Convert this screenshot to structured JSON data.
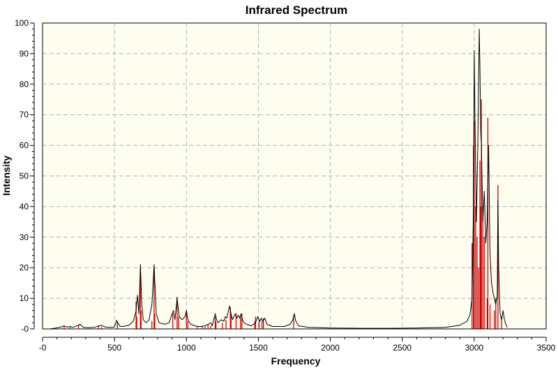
{
  "chart_data": {
    "type": "line",
    "title": "Infrared Spectrum",
    "xlabel": "Frequency",
    "ylabel": "Intensity",
    "xlim": [
      0,
      3500
    ],
    "ylim": [
      0,
      100
    ],
    "x_ticks": [
      0,
      500,
      1000,
      1500,
      2000,
      2500,
      3000,
      3500
    ],
    "x_tick_labels": [
      "-0",
      "500",
      "1000",
      "1500",
      "2000",
      "2500",
      "3000",
      "3500"
    ],
    "y_ticks": [
      0,
      10,
      20,
      30,
      40,
      50,
      60,
      70,
      80,
      90,
      100
    ],
    "y_tick_labels": [
      "-0",
      "10",
      "20",
      "30",
      "40",
      "50",
      "60",
      "70",
      "80",
      "90",
      "100"
    ],
    "grid": true,
    "colors": {
      "plot_background": "#fdfdf0",
      "grid": "#b4b4b4",
      "spectrum": "#000000",
      "sticks": "#cc0000"
    },
    "series": [
      {
        "kind": "spectrum",
        "x": [
          50,
          80,
          120,
          150,
          170,
          190,
          210,
          240,
          260,
          280,
          300,
          330,
          360,
          390,
          410,
          420,
          440,
          470,
          500,
          515,
          525,
          540,
          560,
          600,
          630,
          650,
          660,
          670,
          680,
          690,
          700,
          720,
          740,
          760,
          775,
          790,
          810,
          850,
          880,
          900,
          910,
          920,
          935,
          940,
          950,
          970,
          990,
          1000,
          1010,
          1030,
          1060,
          1080,
          1100,
          1130,
          1150,
          1170,
          1180,
          1200,
          1210,
          1220,
          1240,
          1260,
          1270,
          1280,
          1300,
          1310,
          1320,
          1340,
          1350,
          1360,
          1370,
          1380,
          1390,
          1400,
          1420,
          1450,
          1480,
          1495,
          1510,
          1520,
          1530,
          1545,
          1560,
          1600,
          1680,
          1720,
          1740,
          1750,
          1760,
          1780,
          1850,
          2000,
          2200,
          2400,
          2600,
          2800,
          2900,
          2950,
          2970,
          2985,
          2995,
          3000,
          3005,
          3015,
          3025,
          3035,
          3040,
          3045,
          3050,
          3060,
          3070,
          3080,
          3090,
          3100,
          3110,
          3120,
          3130,
          3140,
          3150,
          3160,
          3165,
          3170,
          3180,
          3190,
          3200,
          3210,
          3220,
          3230
        ],
        "y": [
          0,
          0.2,
          0.5,
          1.0,
          0.6,
          0.8,
          0.5,
          1.0,
          1.5,
          0.6,
          0.4,
          0.4,
          0.5,
          1.0,
          1.2,
          0.9,
          0.6,
          0.5,
          0.6,
          2.8,
          1.8,
          0.8,
          0.8,
          1.2,
          2.5,
          6.0,
          11.0,
          5.0,
          21.0,
          8.0,
          3.0,
          2.0,
          3.0,
          8.0,
          21.0,
          5.0,
          2.0,
          1.5,
          2.0,
          5.0,
          6.0,
          3.0,
          10.0,
          8.0,
          4.0,
          3.0,
          4.0,
          6.0,
          3.0,
          1.5,
          1.0,
          0.8,
          0.8,
          1.0,
          1.5,
          2.0,
          1.0,
          5.0,
          3.0,
          2.0,
          3.0,
          2.5,
          4.0,
          3.5,
          7.5,
          5.0,
          3.0,
          5.0,
          3.5,
          4.5,
          3.5,
          5.0,
          3.0,
          2.0,
          1.5,
          1.0,
          2.0,
          4.0,
          2.5,
          3.5,
          2.5,
          3.5,
          1.5,
          0.8,
          0.8,
          1.5,
          3.0,
          5.0,
          2.5,
          1.0,
          0.5,
          0.3,
          0.2,
          0.2,
          0.3,
          0.5,
          1.2,
          2.5,
          4.5,
          10.0,
          40.0,
          91.0,
          70.0,
          35.0,
          60.0,
          98.0,
          85.0,
          65.0,
          60.0,
          35.0,
          45.0,
          28.0,
          35.0,
          60.0,
          25.0,
          15.0,
          12.0,
          10.0,
          8.0,
          11.0,
          42.0,
          20.0,
          5.0,
          3.0,
          6.0,
          3.0,
          1.5,
          0.5
        ]
      },
      {
        "kind": "sticks",
        "x": [
          150,
          190,
          250,
          390,
          410,
          520,
          650,
          655,
          680,
          685,
          760,
          775,
          780,
          905,
          935,
          945,
          1000,
          1010,
          1075,
          1110,
          1130,
          1150,
          1170,
          1200,
          1205,
          1250,
          1275,
          1305,
          1310,
          1345,
          1375,
          1385,
          1475,
          1480,
          1505,
          1525,
          1535,
          1745,
          2985,
          2995,
          3000,
          3010,
          3020,
          3030,
          3040,
          3045,
          3050,
          3060,
          3070,
          3090,
          3095,
          3110,
          3140,
          3150,
          3165,
          3190
        ],
        "y": [
          0.8,
          0.6,
          1.2,
          0.8,
          0.6,
          2.5,
          9.0,
          4.0,
          20.0,
          6.0,
          2.5,
          20.5,
          5.0,
          5.0,
          10.5,
          4.0,
          6.0,
          2.5,
          0.8,
          0.8,
          0.8,
          1.5,
          1.0,
          4.0,
          2.5,
          2.0,
          3.0,
          7.0,
          5.0,
          5.0,
          4.5,
          5.0,
          2.5,
          4.0,
          3.0,
          2.5,
          3.5,
          4.5,
          28.0,
          60.0,
          68.0,
          40.0,
          30.0,
          20.0,
          55.0,
          40.0,
          75.0,
          40.0,
          30.0,
          10.0,
          69.0,
          8.0,
          6.0,
          10.0,
          47.0,
          4.0
        ]
      }
    ]
  }
}
